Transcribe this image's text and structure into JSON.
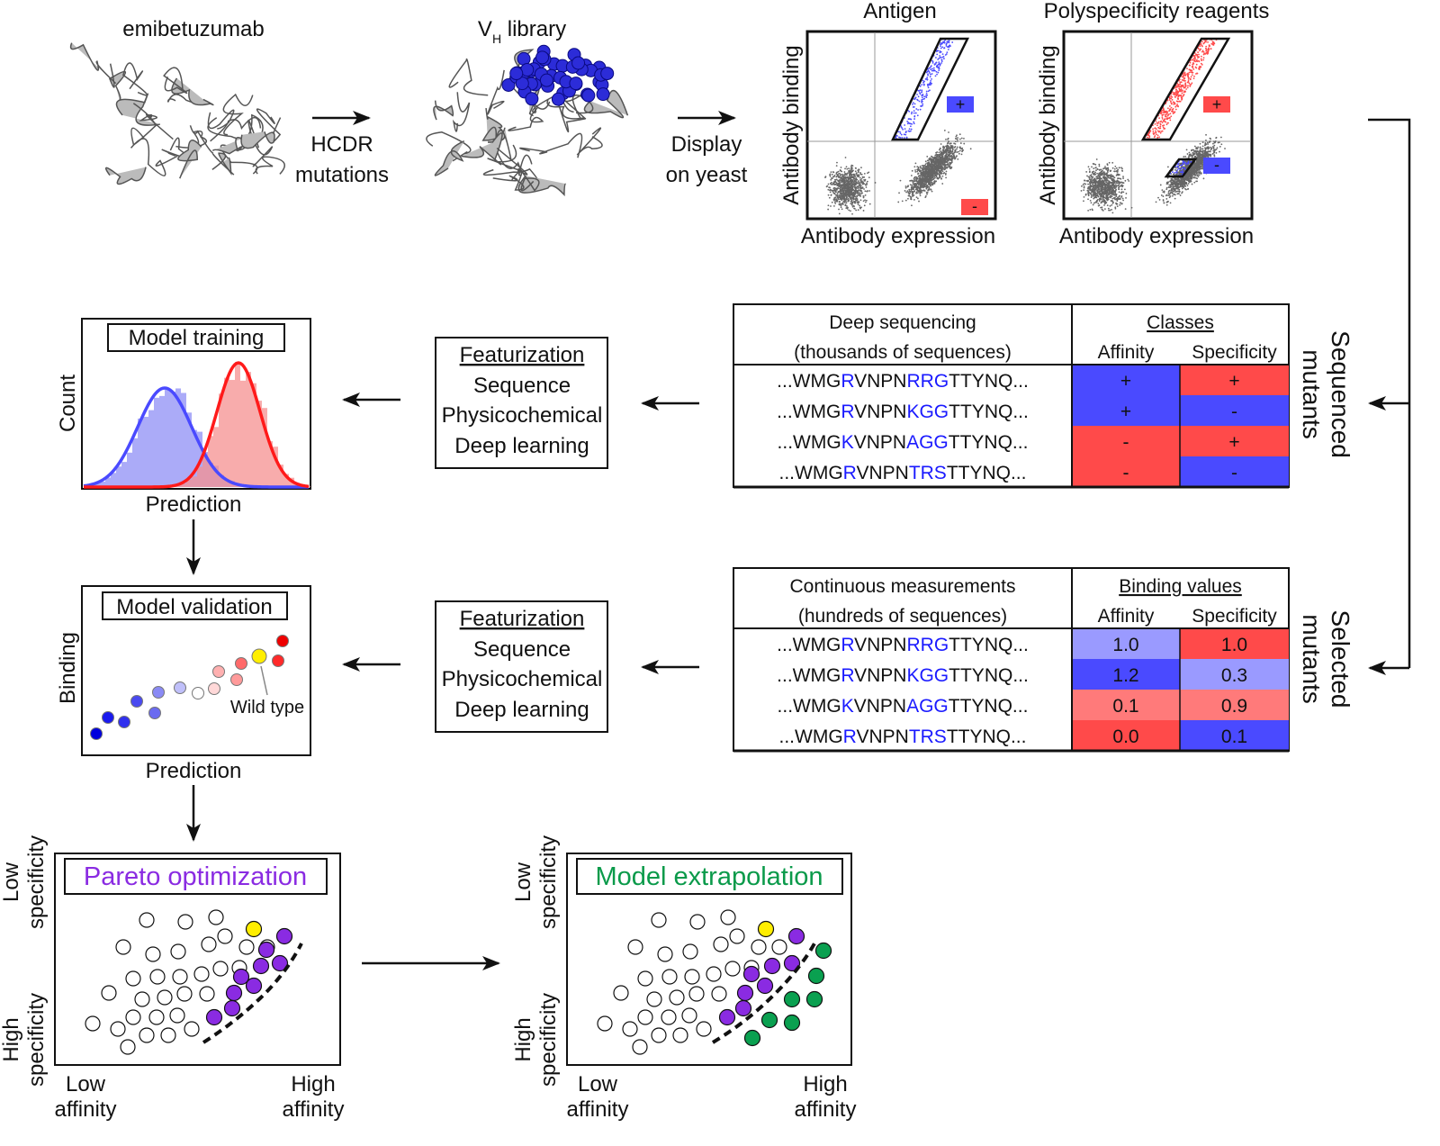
{
  "top": {
    "parent_label": "emibetuzumab",
    "step1": [
      "HCDR",
      "mutations"
    ],
    "library_label_main": "V",
    "library_label_sub": "H",
    "library_label_rest": " library",
    "step2": [
      "Display",
      "on yeast"
    ],
    "plots": [
      {
        "title": "Antigen",
        "ylabel": "Antibody binding",
        "xlabel": "Antibody expression",
        "gate_pos": "+",
        "gate_neg": "-",
        "pos_color": "#4a4aff",
        "neg_color": "#ff4a4a"
      },
      {
        "title": "Polyspecificity reagents",
        "ylabel": "Antibody binding",
        "xlabel": "Antibody expression",
        "gate_pos": "+",
        "gate_neg": "-",
        "pos_color": "#ff4a4a",
        "neg_color": "#4a4aff"
      }
    ]
  },
  "sequenced": {
    "side_label": [
      "Sequenced",
      "mutants"
    ],
    "header_left": [
      "Deep sequencing",
      "(thousands of sequences)"
    ],
    "header_group": "Classes",
    "col_affinity": "Affinity",
    "col_specificity": "Specificity",
    "rows": [
      {
        "seq": [
          [
            "...WMG",
            0
          ],
          [
            "R",
            1
          ],
          [
            "VNPN",
            0
          ],
          [
            "RRG",
            1
          ],
          [
            "TTYNQ...",
            0
          ]
        ],
        "affinity": "+",
        "specificity": "+",
        "aff_color": "#4a4aff",
        "spec_color": "#ff4a4a"
      },
      {
        "seq": [
          [
            "...WMG",
            0
          ],
          [
            "R",
            1
          ],
          [
            "VNPN",
            0
          ],
          [
            "KGG",
            1
          ],
          [
            "TTYNQ...",
            0
          ]
        ],
        "affinity": "+",
        "specificity": "-",
        "aff_color": "#4a4aff",
        "spec_color": "#4a4aff"
      },
      {
        "seq": [
          [
            "...WMG",
            0
          ],
          [
            "K",
            1
          ],
          [
            "VNPN",
            0
          ],
          [
            "AGG",
            1
          ],
          [
            "TTYNQ...",
            0
          ]
        ],
        "affinity": "-",
        "specificity": "+",
        "aff_color": "#ff4a4a",
        "spec_color": "#ff4a4a"
      },
      {
        "seq": [
          [
            "...WMG",
            0
          ],
          [
            "R",
            1
          ],
          [
            "VNPN",
            0
          ],
          [
            "TRS",
            1
          ],
          [
            "TTYNQ...",
            0
          ]
        ],
        "affinity": "-",
        "specificity": "-",
        "aff_color": "#ff4a4a",
        "spec_color": "#4a4aff"
      }
    ]
  },
  "selected": {
    "side_label": [
      "Selected",
      "mutants"
    ],
    "header_left": [
      "Continuous measurements",
      "(hundreds of sequences)"
    ],
    "header_group": "Binding values",
    "col_affinity": "Affinity",
    "col_specificity": "Specificity",
    "rows": [
      {
        "seq": [
          [
            "...WMG",
            0
          ],
          [
            "R",
            1
          ],
          [
            "VNPN",
            0
          ],
          [
            "RRG",
            1
          ],
          [
            "TTYNQ...",
            0
          ]
        ],
        "affinity": "1.0",
        "specificity": "1.0",
        "aff_color": "#9a9aff",
        "spec_color": "#ff4a4a"
      },
      {
        "seq": [
          [
            "...WMG",
            0
          ],
          [
            "R",
            1
          ],
          [
            "VNPN",
            0
          ],
          [
            "KGG",
            1
          ],
          [
            "TTYNQ...",
            0
          ]
        ],
        "affinity": "1.2",
        "specificity": "0.3",
        "aff_color": "#4a4aff",
        "spec_color": "#9a9aff"
      },
      {
        "seq": [
          [
            "...WMG",
            0
          ],
          [
            "K",
            1
          ],
          [
            "VNPN",
            0
          ],
          [
            "AGG",
            1
          ],
          [
            "TTYNQ...",
            0
          ]
        ],
        "affinity": "0.1",
        "specificity": "0.9",
        "aff_color": "#ff7a7a",
        "spec_color": "#ff7a7a"
      },
      {
        "seq": [
          [
            "...WMG",
            0
          ],
          [
            "R",
            1
          ],
          [
            "VNPN",
            0
          ],
          [
            "TRS",
            1
          ],
          [
            "TTYNQ...",
            0
          ]
        ],
        "affinity": "0.0",
        "specificity": "0.1",
        "aff_color": "#ff4a4a",
        "spec_color": "#4a4aff"
      }
    ]
  },
  "featurization": {
    "title": "Featurization",
    "items": [
      "Sequence",
      "Physicochemical",
      "Deep learning"
    ]
  },
  "training": {
    "title": "Model training",
    "ylabel": "Count",
    "xlabel": "Prediction"
  },
  "validation": {
    "title": "Model validation",
    "ylabel": "Binding",
    "xlabel": "Prediction",
    "annotation": "Wild type"
  },
  "pareto": {
    "title": "Pareto optimization",
    "title_color": "#8a2be2"
  },
  "extrapolation": {
    "title": "Model extrapolation",
    "title_color": "#0a9a4a"
  },
  "axes": {
    "y_low": [
      "Low",
      "specificity"
    ],
    "y_high": [
      "High",
      "specificity"
    ],
    "x_low": [
      "Low",
      "affinity"
    ],
    "x_high": [
      "High",
      "affinity"
    ]
  },
  "colors": {
    "blue": "#4a4aff",
    "red": "#ff4a4a",
    "purple": "#8a2be2",
    "green": "#0aa050",
    "yellow": "#ffee00",
    "seq_highlight": "#1a1aff"
  }
}
